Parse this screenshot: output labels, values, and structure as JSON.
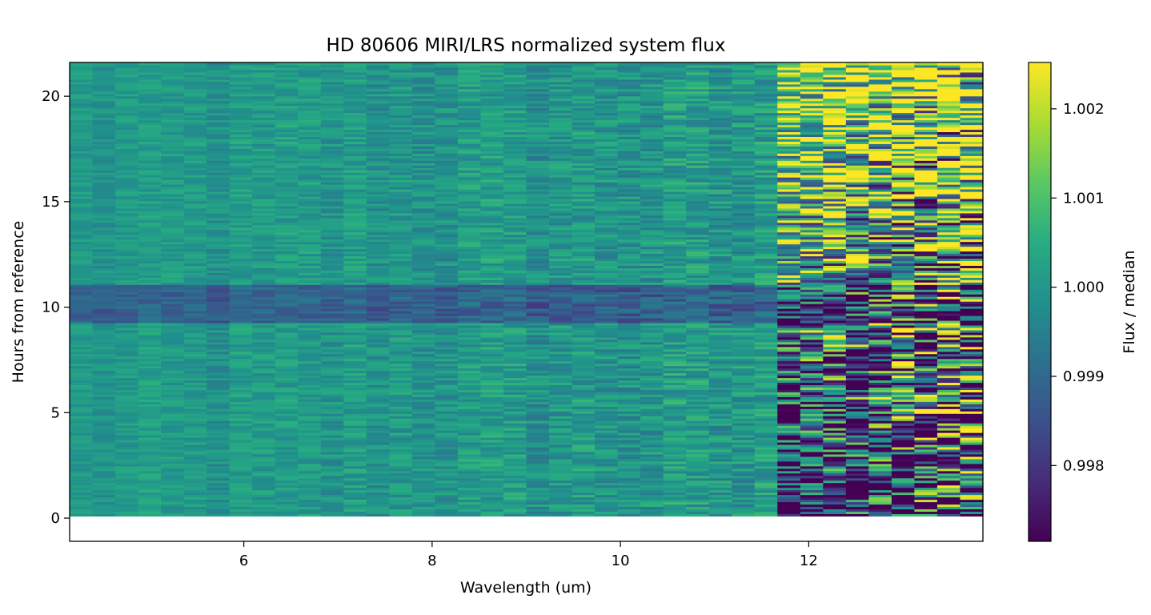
{
  "chart_data": {
    "type": "heatmap",
    "title": "HD 80606 MIRI/LRS normalized system flux",
    "xlabel": "Wavelength (um)",
    "ylabel": "Hours from reference",
    "xlim": [
      4.15,
      13.85
    ],
    "ylim": [
      -1.1,
      21.6
    ],
    "x_ticks": [
      6,
      8,
      10,
      12
    ],
    "y_ticks": [
      0,
      5,
      10,
      15,
      20
    ],
    "colorbar": {
      "label": "Flux / median",
      "range": [
        0.99715,
        1.00252
      ],
      "ticks": [
        0.998,
        0.999,
        1.0,
        1.001,
        1.002
      ],
      "tick_labels": [
        "0.998",
        "0.999",
        "1.000",
        "1.001",
        "1.002"
      ],
      "colormap": "viridis"
    },
    "grid": false,
    "data_extent": {
      "wavelength_range": [
        4.15,
        13.85
      ],
      "time_range_hours": [
        0.1,
        21.6
      ],
      "wavelength_bins": 40,
      "time_bins": 190
    },
    "features": [
      {
        "type": "transit_dip",
        "hours": [
          9.3,
          11.1
        ],
        "flux": 0.9988
      },
      {
        "type": "noisy_region",
        "wavelength_from": 11.7
      }
    ]
  }
}
